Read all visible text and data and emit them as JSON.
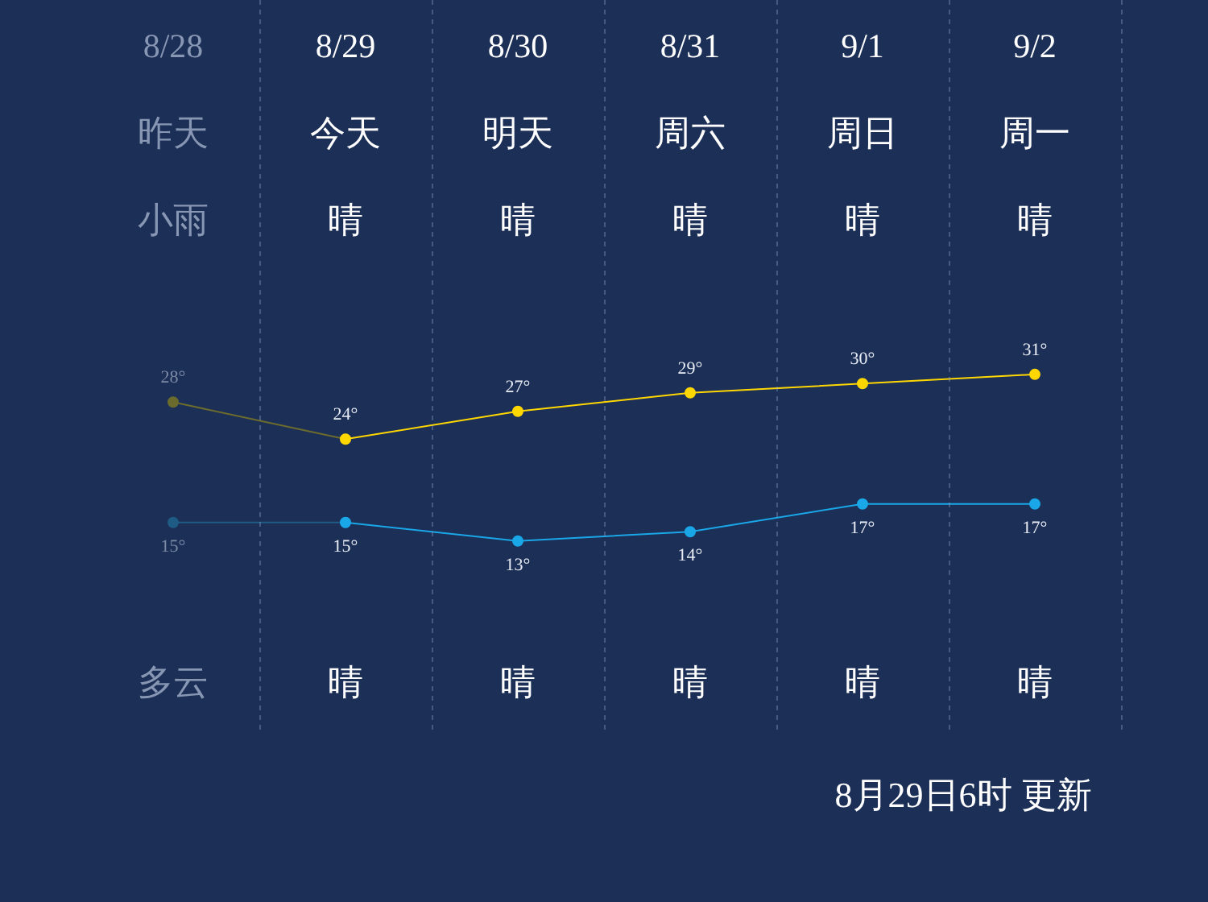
{
  "chart_data": {
    "type": "line",
    "categories": [
      "8/28",
      "8/29",
      "8/30",
      "8/31",
      "9/1",
      "9/2"
    ],
    "series": [
      {
        "color": "#ffd700",
        "values": [
          null,
          24,
          27,
          29,
          30,
          31
        ],
        "value_labels": [
          null,
          "24°",
          "27°",
          "29°",
          "30°",
          "31°"
        ]
      },
      {
        "color": "#1aa7e8",
        "values": [
          null,
          15,
          13,
          14,
          17,
          17
        ],
        "value_labels": [
          null,
          "15°",
          "13°",
          "14°",
          "17°",
          "17°"
        ]
      },
      {
        "color": "#6b6b2e",
        "values": [
          28,
          24,
          null,
          null,
          null,
          null
        ],
        "value_labels": [
          "28°",
          null,
          null,
          null,
          null,
          null
        ]
      },
      {
        "color": "#1e5b85",
        "values": [
          15,
          15,
          null,
          null,
          null,
          null
        ],
        "value_labels": [
          "15°",
          null,
          null,
          null,
          null,
          null
        ]
      }
    ],
    "tick_labels": false,
    "grid": "x",
    "legend": false,
    "marker": "circle",
    "annotations": [
      "昨天",
      "今天",
      "明天",
      "周六",
      "周日",
      "周一",
      "小雨",
      "晴",
      "晴",
      "晴",
      "晴",
      "晴",
      "多云",
      "晴",
      "晴",
      "晴",
      "晴",
      "晴",
      "8月29日6时 更新"
    ]
  }
}
